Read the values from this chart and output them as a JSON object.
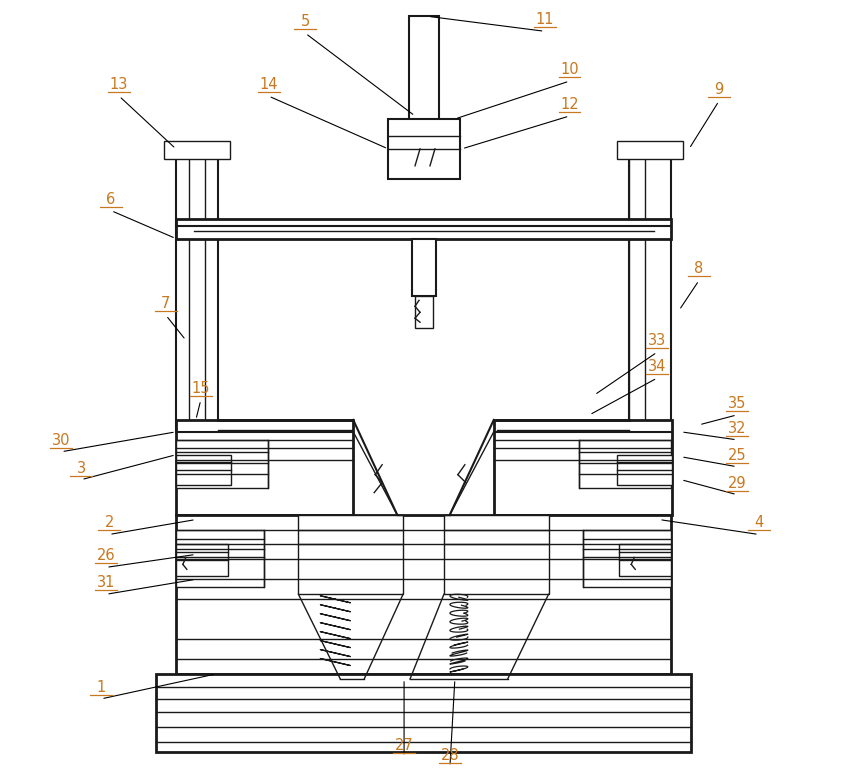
{
  "bg_color": "#ffffff",
  "line_color": "#1a1a1a",
  "label_color": "#c87820",
  "fig_width": 8.47,
  "fig_height": 7.8,
  "labels": [
    [
      "1",
      100,
      700,
      215,
      675
    ],
    [
      "2",
      108,
      535,
      195,
      520
    ],
    [
      "3",
      80,
      480,
      175,
      455
    ],
    [
      "4",
      760,
      535,
      660,
      520
    ],
    [
      "5",
      305,
      32,
      415,
      115
    ],
    [
      "6",
      110,
      210,
      175,
      238
    ],
    [
      "7",
      165,
      315,
      185,
      340
    ],
    [
      "8",
      700,
      280,
      680,
      310
    ],
    [
      "9",
      720,
      100,
      690,
      148
    ],
    [
      "10",
      570,
      80,
      455,
      118
    ],
    [
      "11",
      545,
      30,
      428,
      15
    ],
    [
      "12",
      570,
      115,
      462,
      148
    ],
    [
      "13",
      118,
      95,
      175,
      148
    ],
    [
      "14",
      268,
      95,
      388,
      148
    ],
    [
      "15",
      200,
      400,
      195,
      420
    ],
    [
      "25",
      738,
      467,
      682,
      457
    ],
    [
      "26",
      105,
      568,
      195,
      555
    ],
    [
      "27",
      404,
      758,
      404,
      680
    ],
    [
      "28",
      450,
      768,
      455,
      680
    ],
    [
      "29",
      738,
      495,
      682,
      480
    ],
    [
      "30",
      60,
      452,
      175,
      432
    ],
    [
      "31",
      105,
      595,
      195,
      580
    ],
    [
      "32",
      738,
      440,
      682,
      432
    ],
    [
      "33",
      658,
      352,
      595,
      395
    ],
    [
      "34",
      658,
      378,
      590,
      415
    ],
    [
      "35",
      738,
      415,
      700,
      425
    ]
  ]
}
